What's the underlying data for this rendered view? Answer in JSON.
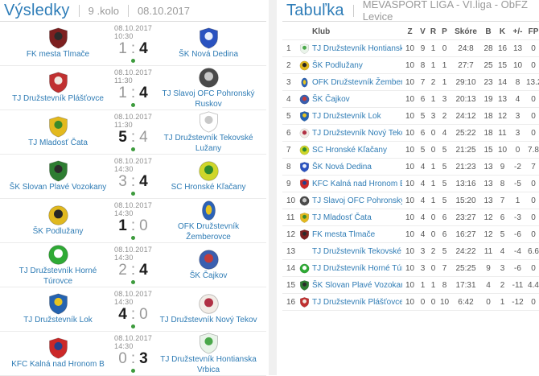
{
  "results": {
    "title": "Výsledky",
    "round": "9 .kolo",
    "date": "08.10.2017",
    "score_separator": ":",
    "matches": [
      {
        "datetime": "08.10.2017 10:30",
        "home": "FK mesta Tlmače",
        "away": "ŠK Nová Dedina",
        "home_score": "1",
        "away_score": "4"
      },
      {
        "datetime": "08.10.2017 11:30",
        "home": "TJ Družstevník Plášťovce",
        "away": "TJ Slavoj OFC Pohronský Ruskov",
        "home_score": "1",
        "away_score": "4"
      },
      {
        "datetime": "08.10.2017 11:30",
        "home": "TJ Mladosť Čata",
        "away": "TJ Družstevník Tekovské Lužany",
        "home_score": "5",
        "away_score": "4"
      },
      {
        "datetime": "08.10.2017 14:30",
        "home": "ŠK Slovan Plavé Vozokany",
        "away": "SC Hronské Kľačany",
        "home_score": "3",
        "away_score": "4"
      },
      {
        "datetime": "08.10.2017 14:30",
        "home": "ŠK Podlužany",
        "away": "OFK Družstevník Žemberovce",
        "home_score": "1",
        "away_score": "0"
      },
      {
        "datetime": "08.10.2017 14:30",
        "home": "TJ Družstevník Horné Túrovce",
        "away": "ŠK Čajkov",
        "home_score": "2",
        "away_score": "4"
      },
      {
        "datetime": "08.10.2017 14:30",
        "home": "TJ Družstevník Lok",
        "away": "TJ Družstevník Nový Tekov",
        "home_score": "4",
        "away_score": "0"
      },
      {
        "datetime": "08.10.2017 14:30",
        "home": "KFC Kalná nad Hronom B",
        "away": "TJ Družstevník Hontianska Vrbica",
        "home_score": "0",
        "away_score": "3"
      }
    ]
  },
  "standings": {
    "title": "Tabuľka",
    "league": "MEVASPORT LIGA - VI.liga - ObFZ Levice",
    "columns": [
      "Klub",
      "Z",
      "V",
      "R",
      "P",
      "Skóre",
      "B",
      "K",
      "+/-",
      "FP"
    ],
    "rows": [
      {
        "rank": 1,
        "club": "TJ Družstevník Hontianska Vrbica",
        "z": 10,
        "v": 9,
        "r": 1,
        "p": 0,
        "score": "24:8",
        "b": 28,
        "k": 16,
        "plusminus": "13",
        "fp": "0"
      },
      {
        "rank": 2,
        "club": "ŠK Podlužany",
        "z": 10,
        "v": 8,
        "r": 1,
        "p": 1,
        "score": "27:7",
        "b": 25,
        "k": 15,
        "plusminus": "10",
        "fp": "0"
      },
      {
        "rank": 3,
        "club": "OFK Družstevník Žemberovce",
        "z": 10,
        "v": 7,
        "r": 2,
        "p": 1,
        "score": "29:10",
        "b": 23,
        "k": 14,
        "plusminus": "8",
        "fp": "13.2"
      },
      {
        "rank": 4,
        "club": "ŠK Čajkov",
        "z": 10,
        "v": 6,
        "r": 1,
        "p": 3,
        "score": "20:13",
        "b": 19,
        "k": 13,
        "plusminus": "4",
        "fp": "0"
      },
      {
        "rank": 5,
        "club": "TJ Družstevník Lok",
        "z": 10,
        "v": 5,
        "r": 3,
        "p": 2,
        "score": "24:12",
        "b": 18,
        "k": 12,
        "plusminus": "3",
        "fp": "0"
      },
      {
        "rank": 6,
        "club": "TJ Družstevník Nový Tekov",
        "z": 10,
        "v": 6,
        "r": 0,
        "p": 4,
        "score": "25:22",
        "b": 18,
        "k": 11,
        "plusminus": "3",
        "fp": "0"
      },
      {
        "rank": 7,
        "club": "SC Hronské Kľačany",
        "z": 10,
        "v": 5,
        "r": 0,
        "p": 5,
        "score": "21:25",
        "b": 15,
        "k": 10,
        "plusminus": "0",
        "fp": "7.8"
      },
      {
        "rank": 8,
        "club": "ŠK Nová Dedina",
        "z": 10,
        "v": 4,
        "r": 1,
        "p": 5,
        "score": "21:23",
        "b": 13,
        "k": 9,
        "plusminus": "-2",
        "fp": "7"
      },
      {
        "rank": 9,
        "club": "KFC Kalná nad Hronom B",
        "z": 10,
        "v": 4,
        "r": 1,
        "p": 5,
        "score": "13:16",
        "b": 13,
        "k": 8,
        "plusminus": "-5",
        "fp": "0"
      },
      {
        "rank": 10,
        "club": "TJ Slavoj OFC Pohronský Ruskov",
        "z": 10,
        "v": 4,
        "r": 1,
        "p": 5,
        "score": "15:20",
        "b": 13,
        "k": 7,
        "plusminus": "1",
        "fp": "0"
      },
      {
        "rank": 11,
        "club": "TJ Mladosť Čata",
        "z": 10,
        "v": 4,
        "r": 0,
        "p": 6,
        "score": "23:27",
        "b": 12,
        "k": 6,
        "plusminus": "-3",
        "fp": "0"
      },
      {
        "rank": 12,
        "club": "FK mesta Tlmače",
        "z": 10,
        "v": 4,
        "r": 0,
        "p": 6,
        "score": "16:27",
        "b": 12,
        "k": 5,
        "plusminus": "-6",
        "fp": "0"
      },
      {
        "rank": 13,
        "club": "TJ Družstevník Tekovské Lužany",
        "z": 10,
        "v": 3,
        "r": 2,
        "p": 5,
        "score": "24:22",
        "b": 11,
        "k": 4,
        "plusminus": "-4",
        "fp": "6.6",
        "show_icon": false
      },
      {
        "rank": 14,
        "club": "TJ Družstevník Horné Túrovce",
        "z": 10,
        "v": 3,
        "r": 0,
        "p": 7,
        "score": "25:25",
        "b": 9,
        "k": 3,
        "plusminus": "-6",
        "fp": "0"
      },
      {
        "rank": 15,
        "club": "ŠK Slovan Plavé Vozokany",
        "z": 10,
        "v": 1,
        "r": 1,
        "p": 8,
        "score": "17:31",
        "b": 4,
        "k": 2,
        "plusminus": "-11",
        "fp": "4.4"
      },
      {
        "rank": 16,
        "club": "TJ Družstevník Plášťovce",
        "z": 10,
        "v": 0,
        "r": 0,
        "p": 10,
        "score": "6:42",
        "b": 0,
        "k": 1,
        "plusminus": "-12",
        "fp": "0"
      }
    ]
  },
  "teams": {
    "FK mesta Tlmače": {
      "shape": "shield",
      "colors": [
        "#7d2020",
        "#2b2b2b"
      ]
    },
    "ŠK Nová Dedina": {
      "shape": "shield",
      "colors": [
        "#2a52c0",
        "#e8eefc"
      ]
    },
    "TJ Družstevník Plášťovce": {
      "shape": "shield",
      "colors": [
        "#c03030",
        "#f0e8e0"
      ]
    },
    "TJ Slavoj OFC Pohronský Ruskov": {
      "shape": "circle",
      "colors": [
        "#4a4a4a",
        "#c8c8c8"
      ]
    },
    "TJ Mladosť Čata": {
      "shape": "shield",
      "colors": [
        "#e3b91e",
        "#3a8a2a"
      ]
    },
    "TJ Družstevník Tekovské Lužany": {
      "shape": "shield",
      "colors": [
        "#ffffff",
        "#c8c8c8"
      ]
    },
    "ŠK Slovan Plavé Vozokany": {
      "shape": "shield",
      "colors": [
        "#2e7d32",
        "#2b2b2b"
      ]
    },
    "SC Hronské Kľačany": {
      "shape": "circle",
      "colors": [
        "#cfd62a",
        "#2e8a2e"
      ]
    },
    "ŠK Podlužany": {
      "shape": "circle",
      "colors": [
        "#e0b81e",
        "#262626"
      ]
    },
    "OFK Družstevník Žemberovce": {
      "shape": "ellipse",
      "colors": [
        "#2b62b8",
        "#e8c520"
      ]
    },
    "TJ Družstevník Horné Túrovce": {
      "shape": "circle",
      "colors": [
        "#2faa35",
        "#ffffff"
      ]
    },
    "ŠK Čajkov": {
      "shape": "circle",
      "colors": [
        "#3a5fb0",
        "#c23b3b"
      ]
    },
    "TJ Družstevník Lok": {
      "shape": "shield",
      "colors": [
        "#2563b0",
        "#e8c520"
      ]
    },
    "TJ Družstevník Nový Tekov": {
      "shape": "circle",
      "colors": [
        "#f2ece6",
        "#b03044"
      ]
    },
    "KFC Kalná nad Hronom B": {
      "shape": "shield",
      "colors": [
        "#cc2828",
        "#24418e"
      ]
    },
    "TJ Družstevník Hontianska Vrbica": {
      "shape": "shield",
      "colors": [
        "#e9f4e9",
        "#4aa84a"
      ]
    }
  },
  "colors": {
    "title_blue": "#2e7db8",
    "link_blue": "#2f7cb5",
    "muted_gray": "#9a9a9a",
    "status_green": "#3d9b3d",
    "winner_text": "#1c1c1c"
  }
}
